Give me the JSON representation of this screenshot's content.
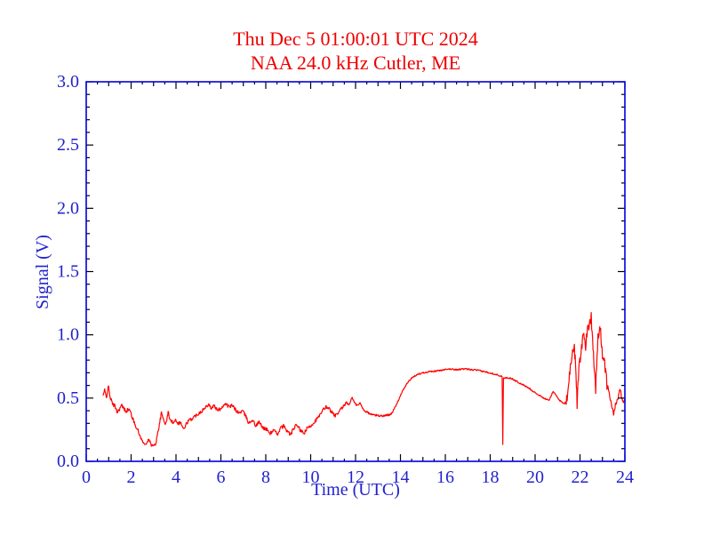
{
  "window": {
    "background": "#ffffff"
  },
  "chart_data": {
    "type": "line",
    "title": "Thu Dec 5 01:00:01 UTC 2024",
    "subtitle": "NAA 24.0 kHz Cutler, ME",
    "xlabel": "Time (UTC)",
    "ylabel": "Signal (V)",
    "xlim": [
      0,
      24
    ],
    "ylim": [
      0.0,
      3.0
    ],
    "x_major_step": 2,
    "x_minor_step": 0.5,
    "y_major_step": 0.5,
    "y_minor_step": 0.1,
    "x_tick_labels": [
      "0",
      "2",
      "4",
      "6",
      "8",
      "10",
      "12",
      "14",
      "16",
      "18",
      "20",
      "22",
      "24"
    ],
    "y_tick_labels": [
      "0.0",
      "0.5",
      "1.0",
      "1.5",
      "2.0",
      "2.5",
      "3.0"
    ],
    "grid": false,
    "legend": "none",
    "colors": {
      "title": "#ee0000",
      "line": "#ff0000",
      "frame": "#0000dd",
      "ticks": "#000000",
      "labels": "#2222cc"
    },
    "series": [
      {
        "name": "NAA 24.0 kHz signal",
        "points": [
          [
            0.75,
            0.52
          ],
          [
            0.82,
            0.56
          ],
          [
            0.9,
            0.5
          ],
          [
            0.98,
            0.6
          ],
          [
            1.05,
            0.52
          ],
          [
            1.15,
            0.46
          ],
          [
            1.3,
            0.43
          ],
          [
            1.39,
            0.39
          ],
          [
            1.5,
            0.42
          ],
          [
            1.58,
            0.44
          ],
          [
            1.7,
            0.41
          ],
          [
            1.78,
            0.4
          ],
          [
            1.9,
            0.41
          ],
          [
            2.0,
            0.38
          ],
          [
            2.1,
            0.32
          ],
          [
            2.25,
            0.27
          ],
          [
            2.35,
            0.22
          ],
          [
            2.5,
            0.16
          ],
          [
            2.6,
            0.13
          ],
          [
            2.7,
            0.15
          ],
          [
            2.8,
            0.17
          ],
          [
            2.9,
            0.13
          ],
          [
            3.0,
            0.12
          ],
          [
            3.1,
            0.14
          ],
          [
            3.2,
            0.24
          ],
          [
            3.3,
            0.33
          ],
          [
            3.35,
            0.38
          ],
          [
            3.45,
            0.33
          ],
          [
            3.55,
            0.29
          ],
          [
            3.65,
            0.39
          ],
          [
            3.75,
            0.32
          ],
          [
            3.85,
            0.31
          ],
          [
            4.0,
            0.33
          ],
          [
            4.1,
            0.3
          ],
          [
            4.2,
            0.31
          ],
          [
            4.35,
            0.25
          ],
          [
            4.5,
            0.31
          ],
          [
            4.65,
            0.33
          ],
          [
            4.8,
            0.35
          ],
          [
            5.0,
            0.38
          ],
          [
            5.15,
            0.4
          ],
          [
            5.3,
            0.42
          ],
          [
            5.45,
            0.46
          ],
          [
            5.55,
            0.42
          ],
          [
            5.7,
            0.44
          ],
          [
            5.85,
            0.4
          ],
          [
            6.0,
            0.42
          ],
          [
            6.1,
            0.44
          ],
          [
            6.2,
            0.46
          ],
          [
            6.35,
            0.43
          ],
          [
            6.5,
            0.44
          ],
          [
            6.65,
            0.41
          ],
          [
            6.8,
            0.38
          ],
          [
            6.95,
            0.4
          ],
          [
            7.1,
            0.36
          ],
          [
            7.25,
            0.3
          ],
          [
            7.4,
            0.33
          ],
          [
            7.55,
            0.28
          ],
          [
            7.7,
            0.31
          ],
          [
            7.85,
            0.27
          ],
          [
            8.05,
            0.25
          ],
          [
            8.2,
            0.22
          ],
          [
            8.35,
            0.25
          ],
          [
            8.5,
            0.21
          ],
          [
            8.65,
            0.26
          ],
          [
            8.8,
            0.28
          ],
          [
            8.95,
            0.24
          ],
          [
            9.1,
            0.21
          ],
          [
            9.25,
            0.26
          ],
          [
            9.4,
            0.29
          ],
          [
            9.55,
            0.24
          ],
          [
            9.7,
            0.22
          ],
          [
            9.85,
            0.26
          ],
          [
            10.0,
            0.28
          ],
          [
            10.15,
            0.31
          ],
          [
            10.3,
            0.34
          ],
          [
            10.45,
            0.37
          ],
          [
            10.6,
            0.42
          ],
          [
            10.75,
            0.43
          ],
          [
            10.9,
            0.4
          ],
          [
            11.05,
            0.36
          ],
          [
            11.2,
            0.37
          ],
          [
            11.35,
            0.41
          ],
          [
            11.5,
            0.44
          ],
          [
            11.6,
            0.47
          ],
          [
            11.7,
            0.44
          ],
          [
            11.85,
            0.51
          ],
          [
            11.95,
            0.46
          ],
          [
            12.1,
            0.44
          ],
          [
            12.2,
            0.46
          ],
          [
            12.35,
            0.41
          ],
          [
            12.5,
            0.39
          ],
          [
            12.7,
            0.37
          ],
          [
            12.9,
            0.365
          ],
          [
            13.1,
            0.36
          ],
          [
            13.3,
            0.36
          ],
          [
            13.5,
            0.37
          ],
          [
            13.65,
            0.39
          ],
          [
            13.8,
            0.44
          ],
          [
            14.0,
            0.52
          ],
          [
            14.2,
            0.59
          ],
          [
            14.4,
            0.64
          ],
          [
            14.6,
            0.67
          ],
          [
            14.8,
            0.69
          ],
          [
            15.0,
            0.7
          ],
          [
            15.3,
            0.71
          ],
          [
            15.6,
            0.715
          ],
          [
            15.9,
            0.72
          ],
          [
            16.2,
            0.73
          ],
          [
            16.5,
            0.725
          ],
          [
            16.8,
            0.73
          ],
          [
            17.1,
            0.725
          ],
          [
            17.4,
            0.72
          ],
          [
            17.7,
            0.71
          ],
          [
            18.0,
            0.7
          ],
          [
            18.2,
            0.69
          ],
          [
            18.4,
            0.68
          ],
          [
            18.53,
            0.67
          ],
          [
            18.56,
            0.13
          ],
          [
            18.59,
            0.66
          ],
          [
            18.8,
            0.66
          ],
          [
            19.0,
            0.65
          ],
          [
            19.2,
            0.63
          ],
          [
            19.5,
            0.6
          ],
          [
            19.8,
            0.57
          ],
          [
            20.1,
            0.53
          ],
          [
            20.4,
            0.5
          ],
          [
            20.6,
            0.48
          ],
          [
            20.8,
            0.55
          ],
          [
            20.95,
            0.52
          ],
          [
            21.1,
            0.48
          ],
          [
            21.3,
            0.45
          ],
          [
            21.45,
            0.52
          ],
          [
            21.55,
            0.72
          ],
          [
            21.65,
            0.85
          ],
          [
            21.75,
            0.9
          ],
          [
            21.82,
            0.7
          ],
          [
            21.87,
            0.45
          ],
          [
            21.95,
            0.75
          ],
          [
            22.05,
            0.88
          ],
          [
            22.15,
            1.0
          ],
          [
            22.25,
            0.92
          ],
          [
            22.35,
            1.05
          ],
          [
            22.5,
            1.15
          ],
          [
            22.6,
            0.85
          ],
          [
            22.7,
            0.58
          ],
          [
            22.8,
            0.98
          ],
          [
            22.9,
            1.05
          ],
          [
            23.0,
            0.85
          ],
          [
            23.1,
            0.78
          ],
          [
            23.2,
            0.6
          ],
          [
            23.35,
            0.5
          ],
          [
            23.5,
            0.38
          ],
          [
            23.6,
            0.46
          ],
          [
            23.7,
            0.5
          ],
          [
            23.8,
            0.57
          ],
          [
            23.9,
            0.46
          ],
          [
            24.0,
            0.5
          ]
        ],
        "noise_segments": [
          [
            0.75,
            2.4,
            0.018
          ],
          [
            2.4,
            3.2,
            0.012
          ],
          [
            3.2,
            11.5,
            0.016
          ],
          [
            11.5,
            13.6,
            0.01
          ],
          [
            13.6,
            18.5,
            0.007
          ],
          [
            18.62,
            21.35,
            0.007
          ],
          [
            21.35,
            23.25,
            0.05
          ],
          [
            23.25,
            24.0,
            0.02
          ]
        ]
      }
    ]
  }
}
